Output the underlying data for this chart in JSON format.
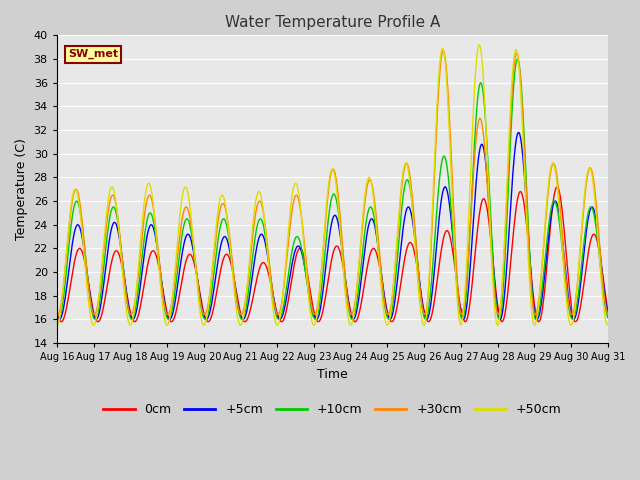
{
  "title": "Water Temperature Profile A",
  "xlabel": "Time",
  "ylabel": "Temperature (C)",
  "ylim": [
    14,
    40
  ],
  "yticks": [
    14,
    16,
    18,
    20,
    22,
    24,
    26,
    28,
    30,
    32,
    34,
    36,
    38,
    40
  ],
  "fig_bg_color": "#d0d0d0",
  "plot_bg_color": "#e8e8e8",
  "legend_label": "SW_met",
  "legend_box_color": "#ffff99",
  "legend_box_edge": "#8b0000",
  "series_labels": [
    "0cm",
    "+5cm",
    "+10cm",
    "+30cm",
    "+50cm"
  ],
  "series_colors": [
    "#ff0000",
    "#0000ff",
    "#00cc00",
    "#ff8800",
    "#dddd00"
  ],
  "n_days": 15,
  "start_day": 16,
  "tick_labels": [
    "Aug 16",
    "Aug 17",
    "Aug 18",
    "Aug 19",
    "Aug 20",
    "Aug 21",
    "Aug 22",
    "Aug 23",
    "Aug 24",
    "Aug 25",
    "Aug 26",
    "Aug 27",
    "Aug 28",
    "Aug 29",
    "Aug 30",
    "Aug 31"
  ]
}
